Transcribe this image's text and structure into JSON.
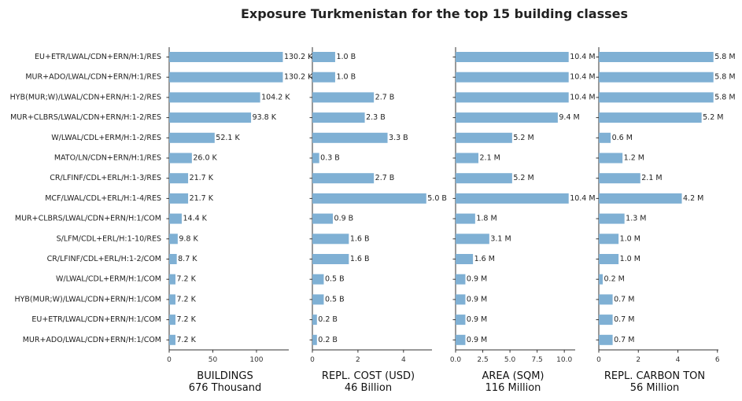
{
  "title": "Exposure Turkmenistan for the top 15 building classes",
  "colors": {
    "bar": "#7fb0d4",
    "axis": "#333333",
    "text": "#222222"
  },
  "chart_data": {
    "type": "bar",
    "orientation": "horizontal",
    "categories": [
      "EU+ETR/LWAL/CDN+ERN/H:1/RES",
      "MUR+ADO/LWAL/CDN+ERN/H:1/RES",
      "HYB(MUR;W)/LWAL/CDN+ERN/H:1-2/RES",
      "MUR+CLBRS/LWAL/CDN+ERN/H:1-2/RES",
      "W/LWAL/CDL+ERM/H:1-2/RES",
      "MATO/LN/CDN+ERN/H:1/RES",
      "CR/LFINF/CDL+ERL/H:1-3/RES",
      "MCF/LWAL/CDL+ERL/H:1-4/RES",
      "MUR+CLBRS/LWAL/CDN+ERN/H:1/COM",
      "S/LFM/CDL+ERL/H:1-10/RES",
      "CR/LFINF/CDL+ERL/H:1-2/COM",
      "W/LWAL/CDL+ERM/H:1/COM",
      "HYB(MUR;W)/LWAL/CDN+ERN/H:1/COM",
      "EU+ETR/LWAL/CDN+ERN/H:1/COM",
      "MUR+ADO/LWAL/CDN+ERN/H:1/COM"
    ],
    "panels": [
      {
        "xlabel": "BUILDINGS",
        "total": "676 Thousand",
        "xlim": [
          0,
          137
        ],
        "ticks": [
          0,
          50,
          100
        ],
        "tick_labels": [
          "0",
          "50",
          "100"
        ],
        "values": [
          130.2,
          130.2,
          104.2,
          93.8,
          52.1,
          26.0,
          21.7,
          21.7,
          14.4,
          9.8,
          8.7,
          7.2,
          7.2,
          7.2,
          7.2
        ],
        "labels": [
          "130.2 K",
          "130.2 K",
          "104.2 K",
          "93.8 K",
          "52.1 K",
          "26.0 K",
          "21.7 K",
          "21.7 K",
          "14.4 K",
          "9.8 K",
          "8.7 K",
          "7.2 K",
          "7.2 K",
          "7.2 K",
          "7.2 K"
        ]
      },
      {
        "xlabel": "REPL. COST (USD)",
        "total": "46 Billion",
        "xlim": [
          0,
          5.25
        ],
        "ticks": [
          0,
          2,
          4
        ],
        "tick_labels": [
          "0",
          "2",
          "4"
        ],
        "values": [
          1.0,
          1.0,
          2.7,
          2.3,
          3.3,
          0.3,
          2.7,
          5.0,
          0.9,
          1.6,
          1.6,
          0.5,
          0.5,
          0.2,
          0.2
        ],
        "labels": [
          "1.0 B",
          "1.0 B",
          "2.7 B",
          "2.3 B",
          "3.3 B",
          "0.3 B",
          "2.7 B",
          "5.0 B",
          "0.9 B",
          "1.6 B",
          "1.6 B",
          "0.5 B",
          "0.5 B",
          "0.2 B",
          "0.2 B"
        ]
      },
      {
        "xlabel": "AREA (SQM)",
        "total": "116 Million",
        "xlim": [
          0,
          11.0
        ],
        "ticks": [
          0,
          2.5,
          5,
          7.5,
          10
        ],
        "tick_labels": [
          "0.0",
          "2.5",
          "5.0",
          "7.5",
          "10.0"
        ],
        "values": [
          10.4,
          10.4,
          10.4,
          9.4,
          5.2,
          2.1,
          5.2,
          10.4,
          1.8,
          3.1,
          1.6,
          0.9,
          0.9,
          0.9,
          0.9
        ],
        "labels": [
          "10.4 M",
          "10.4 M",
          "10.4 M",
          "9.4 M",
          "5.2 M",
          "2.1 M",
          "5.2 M",
          "10.4 M",
          "1.8 M",
          "3.1 M",
          "1.6 M",
          "0.9 M",
          "0.9 M",
          "0.9 M",
          "0.9 M"
        ]
      },
      {
        "xlabel": "REPL. CARBON TON",
        "total": "56 Million",
        "xlim": [
          0,
          6.05
        ],
        "ticks": [
          0,
          2,
          4,
          6
        ],
        "tick_labels": [
          "0",
          "2",
          "4",
          "6"
        ],
        "values": [
          5.8,
          5.8,
          5.8,
          5.2,
          0.6,
          1.2,
          2.1,
          4.2,
          1.3,
          1.0,
          1.0,
          0.2,
          0.7,
          0.7,
          0.7
        ],
        "labels": [
          "5.8 M",
          "5.8 M",
          "5.8 M",
          "5.2 M",
          "0.6 M",
          "1.2 M",
          "2.1 M",
          "4.2 M",
          "1.3 M",
          "1.0 M",
          "1.0 M",
          "0.2 M",
          "0.7 M",
          "0.7 M",
          "0.7 M"
        ]
      }
    ]
  }
}
